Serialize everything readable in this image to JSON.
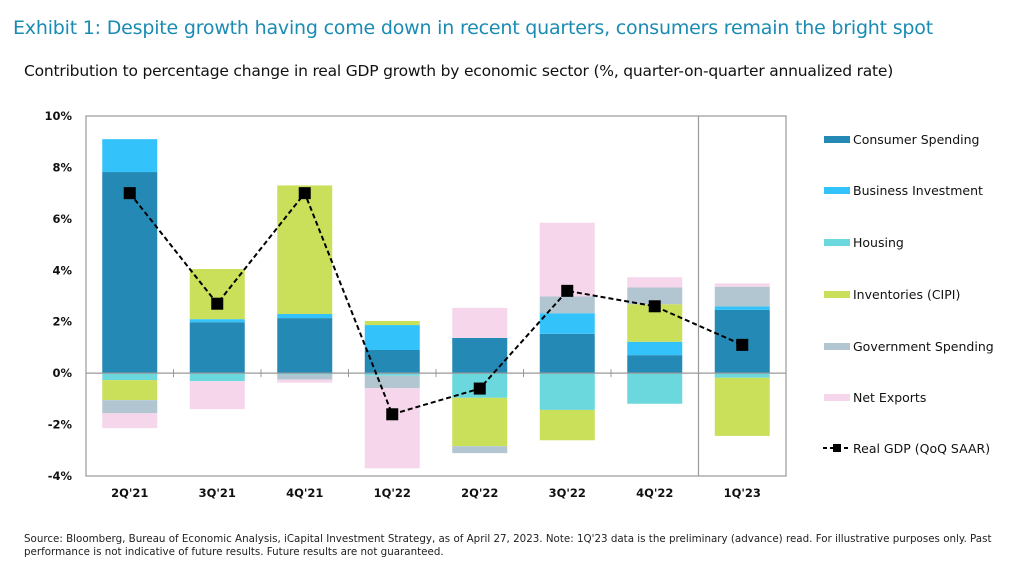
{
  "title": "Exhibit 1: Despite growth having come down in recent quarters, consumers remain the bright spot",
  "subtitle": "Contribution to percentage change in real GDP growth by economic sector (%, quarter-on-quarter annualized rate)",
  "source": "Source: Bloomberg, Bureau of Economic Analysis, iCapital Investment Strategy, as of April 27, 2023. Note: 1Q'23 data is the preliminary (advance) read. For illustrative purposes only. Past performance is not indicative of future results. Future results are not guaranteed.",
  "chart_data": {
    "type": "bar",
    "stacked": true,
    "categories": [
      "2Q'21",
      "3Q'21",
      "4Q'21",
      "1Q'22",
      "2Q'22",
      "3Q'22",
      "4Q'22",
      "1Q'23"
    ],
    "ylim": [
      -4,
      10
    ],
    "yticks": [
      -4,
      -2,
      0,
      2,
      4,
      6,
      8,
      10
    ],
    "ytick_labels": [
      "-4%",
      "-2%",
      "0%",
      "2%",
      "4%",
      "6%",
      "8%",
      "10%"
    ],
    "legend_position": "right",
    "grid": false,
    "series": [
      {
        "name": "Consumer Spending",
        "color": "#2589b5",
        "values": [
          7.82,
          1.98,
          2.14,
          0.9,
          1.37,
          1.53,
          0.7,
          2.46
        ]
      },
      {
        "name": "Business Investment",
        "color": "#33c3fa",
        "values": [
          1.28,
          0.12,
          0.16,
          0.97,
          0,
          0.8,
          0.52,
          0.13
        ]
      },
      {
        "name": "Housing",
        "color": "#6ad8dc",
        "values": [
          -0.27,
          -0.31,
          -0.05,
          -0.1,
          -0.96,
          -1.43,
          -1.19,
          -0.18
        ]
      },
      {
        "name": "Inventories (CIPI)",
        "color": "#cadf5a",
        "values": [
          -0.78,
          1.95,
          5.0,
          0.16,
          -1.88,
          -1.18,
          1.46,
          -2.26
        ]
      },
      {
        "name": "Government Spending",
        "color": "#b2c6d2",
        "values": [
          -0.51,
          0,
          -0.2,
          -0.48,
          -0.27,
          0.65,
          0.65,
          0.77
        ]
      },
      {
        "name": "Net Exports",
        "color": "#f5d6eb",
        "values": [
          -0.58,
          -1.09,
          -0.12,
          -3.12,
          1.17,
          2.87,
          0.4,
          0.13
        ]
      }
    ],
    "line": {
      "name": "Real GDP (QoQ SAAR)",
      "color": "#000000",
      "style": "dashed",
      "values": [
        7.0,
        2.7,
        7.0,
        -1.6,
        -0.6,
        3.2,
        2.6,
        1.1
      ]
    },
    "annotations": [
      "vertical divider before 1Q'23"
    ]
  }
}
